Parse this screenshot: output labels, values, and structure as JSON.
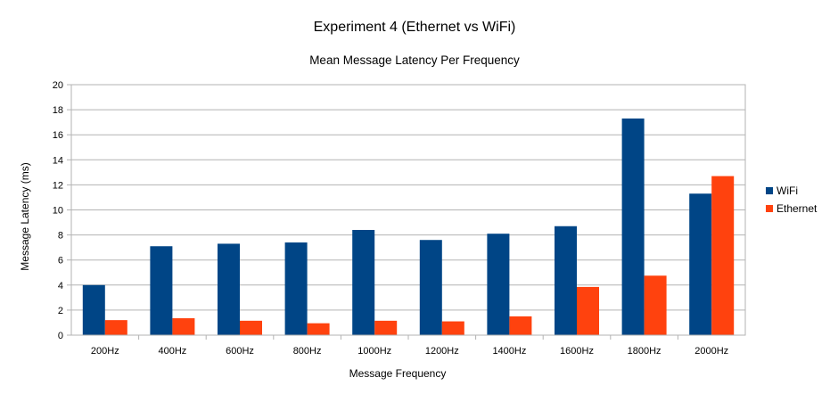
{
  "chart_data": {
    "type": "bar",
    "title": "Experiment 4 (Ethernet vs WiFi)",
    "subtitle": "Mean Message Latency Per Frequency",
    "xlabel": "Message Frequency",
    "ylabel": "Message Latency (ms)",
    "ylim": [
      0,
      20
    ],
    "yticks": [
      0,
      2,
      4,
      6,
      8,
      10,
      12,
      14,
      16,
      18,
      20
    ],
    "grid": true,
    "legend_position": "right",
    "categories": [
      "200Hz",
      "400Hz",
      "600Hz",
      "800Hz",
      "1000Hz",
      "1200Hz",
      "1400Hz",
      "1600Hz",
      "1800Hz",
      "2000Hz"
    ],
    "series": [
      {
        "name": "WiFi",
        "color": "#004586",
        "values": [
          4.0,
          7.1,
          7.3,
          7.4,
          8.4,
          7.6,
          8.1,
          8.7,
          17.3,
          11.3
        ]
      },
      {
        "name": "Ethernet",
        "color": "#ff420e",
        "values": [
          1.2,
          1.35,
          1.15,
          0.95,
          1.15,
          1.1,
          1.5,
          3.85,
          4.75,
          12.7
        ]
      }
    ]
  }
}
